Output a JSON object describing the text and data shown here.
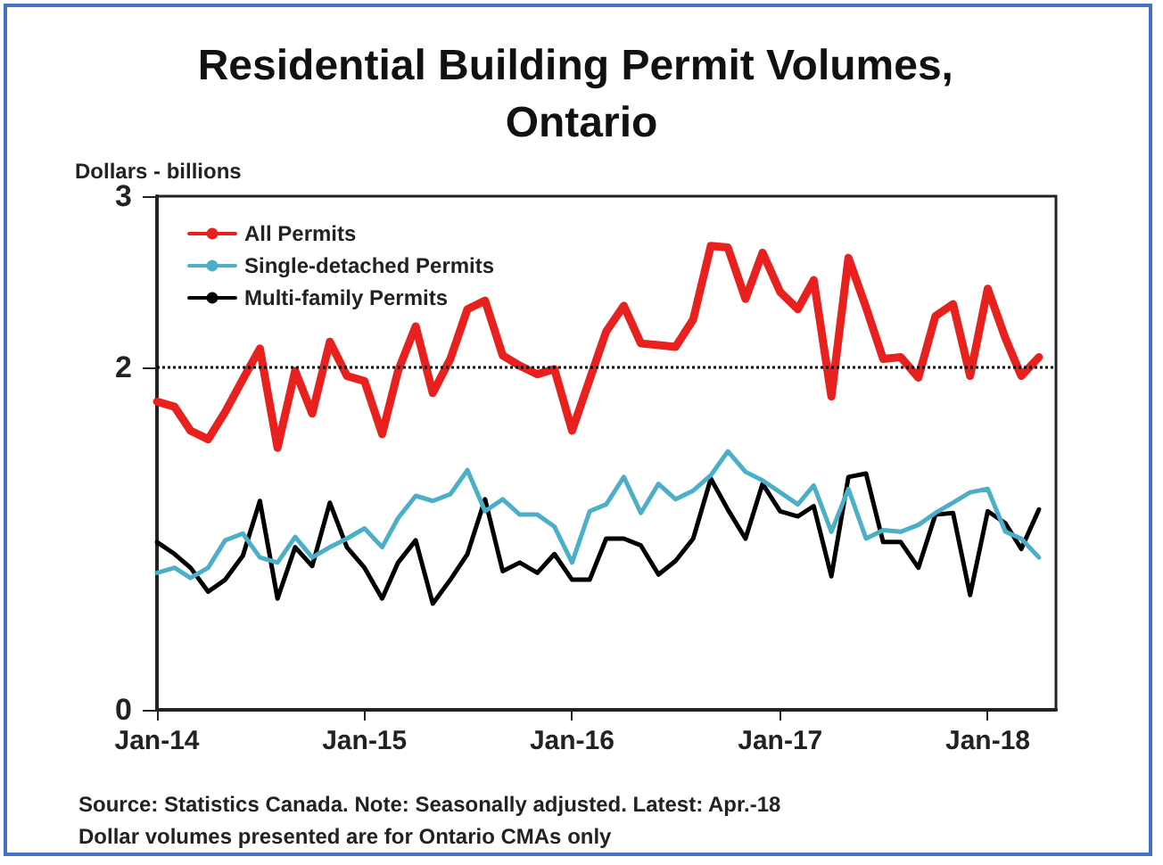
{
  "chart_data": {
    "type": "line",
    "title": "Residential Building Permit Volumes, Ontario",
    "ylabel": "Dollars - billions",
    "annotations": [
      "Source: Statistics Canada. Note: Seasonally adjusted. Latest: Apr.-18",
      "Dollar volumes presented are for Ontario CMAs only"
    ],
    "x": [
      "2014-01",
      "2014-02",
      "2014-03",
      "2014-04",
      "2014-05",
      "2014-06",
      "2014-07",
      "2014-08",
      "2014-09",
      "2014-10",
      "2014-11",
      "2014-12",
      "2015-01",
      "2015-02",
      "2015-03",
      "2015-04",
      "2015-05",
      "2015-06",
      "2015-07",
      "2015-08",
      "2015-09",
      "2015-10",
      "2015-11",
      "2015-12",
      "2016-01",
      "2016-02",
      "2016-03",
      "2016-04",
      "2016-05",
      "2016-06",
      "2016-07",
      "2016-08",
      "2016-09",
      "2016-10",
      "2016-11",
      "2016-12",
      "2017-01",
      "2017-02",
      "2017-03",
      "2017-04",
      "2017-05",
      "2017-06",
      "2017-07",
      "2017-08",
      "2017-09",
      "2017-10",
      "2017-11",
      "2017-12",
      "2018-01",
      "2018-02",
      "2018-03",
      "2018-04"
    ],
    "series": [
      {
        "name": "All Permits",
        "color": "#e8211f",
        "values": [
          1.8,
          1.77,
          1.63,
          1.58,
          1.74,
          1.93,
          2.11,
          1.53,
          1.98,
          1.73,
          2.15,
          1.95,
          1.92,
          1.61,
          1.98,
          2.24,
          1.85,
          2.05,
          2.34,
          2.39,
          2.07,
          2.01,
          1.96,
          1.99,
          1.63,
          1.93,
          2.21,
          2.36,
          2.14,
          2.13,
          2.12,
          2.28,
          2.71,
          2.7,
          2.4,
          2.67,
          2.44,
          2.34,
          2.51,
          1.83,
          2.64,
          2.35,
          2.05,
          2.06,
          1.94,
          2.3,
          2.37,
          1.95,
          2.46,
          2.17,
          1.95,
          2.06
        ]
      },
      {
        "name": "Single-detached Permits",
        "color": "#4bafc8",
        "values": [
          0.8,
          0.83,
          0.77,
          0.83,
          0.99,
          1.03,
          0.89,
          0.86,
          1.01,
          0.89,
          0.95,
          1.0,
          1.06,
          0.95,
          1.12,
          1.25,
          1.22,
          1.26,
          1.4,
          1.16,
          1.23,
          1.14,
          1.14,
          1.07,
          0.86,
          1.16,
          1.2,
          1.36,
          1.15,
          1.32,
          1.23,
          1.28,
          1.37,
          1.51,
          1.39,
          1.34,
          1.27,
          1.2,
          1.31,
          1.04,
          1.29,
          1.0,
          1.05,
          1.04,
          1.08,
          1.15,
          1.21,
          1.27,
          1.29,
          1.04,
          1.0,
          0.89
        ]
      },
      {
        "name": "Multi-family Permits",
        "color": "#000000",
        "values": [
          0.98,
          0.91,
          0.83,
          0.69,
          0.76,
          0.9,
          1.22,
          0.65,
          0.95,
          0.84,
          1.21,
          0.95,
          0.83,
          0.65,
          0.86,
          0.99,
          0.62,
          0.76,
          0.91,
          1.23,
          0.81,
          0.86,
          0.8,
          0.91,
          0.76,
          0.76,
          1.0,
          1.0,
          0.96,
          0.79,
          0.87,
          1.0,
          1.35,
          1.17,
          1.0,
          1.32,
          1.16,
          1.13,
          1.19,
          0.78,
          1.36,
          1.38,
          0.98,
          0.98,
          0.83,
          1.14,
          1.15,
          0.67,
          1.16,
          1.09,
          0.94,
          1.17
        ]
      }
    ],
    "xlim": [
      "2014-01",
      "2018-05"
    ],
    "xticks": [
      {
        "value": "2014-01",
        "label": "Jan-14"
      },
      {
        "value": "2015-01",
        "label": "Jan-15"
      },
      {
        "value": "2016-01",
        "label": "Jan-16"
      },
      {
        "value": "2017-01",
        "label": "Jan-17"
      },
      {
        "value": "2018-01",
        "label": "Jan-18"
      }
    ],
    "ylim": [
      0,
      3
    ],
    "yticks": [
      0,
      2,
      3
    ],
    "ref_lines": [
      {
        "axis": "y",
        "value": 2,
        "line_style": "dotted",
        "color": "#000000"
      }
    ],
    "legend": "top left",
    "grid": false,
    "marker": "none",
    "line_style": "solid"
  }
}
